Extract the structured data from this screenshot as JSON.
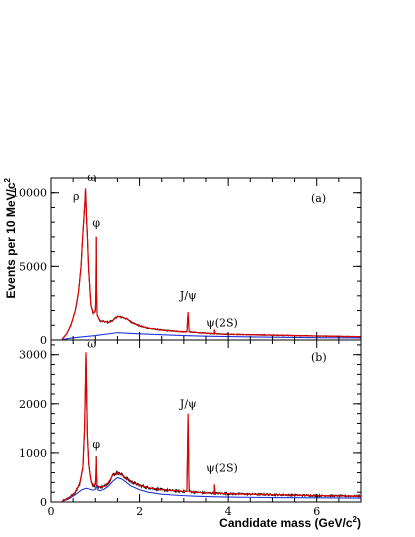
{
  "chart_data": {
    "type": "line",
    "xlabel_main": "Candidate mass (GeV/c",
    "xlabel_sup": "2",
    "xlabel_end": ")",
    "ylabel_main": "Events per 10 MeV/c",
    "ylabel_sup": "2",
    "xlim": [
      0,
      7
    ],
    "x_ticks": [
      0,
      2,
      4,
      6
    ],
    "colors": {
      "data": "#000000",
      "red": "#e00000",
      "blue": "#2233dd"
    },
    "panels": [
      {
        "panel_label": "(a)",
        "ylim": [
          0,
          11000
        ],
        "y_ticks": [
          0,
          5000,
          10000
        ],
        "annotations": [
          {
            "text": "ρ",
            "x": 0.57,
            "y": 9500
          },
          {
            "text": "ω",
            "x": 0.92,
            "y": 10800
          },
          {
            "text": "φ",
            "x": 1.02,
            "y": 7700
          },
          {
            "text": "J/ψ",
            "x": 3.1,
            "y": 2800
          },
          {
            "text": "ψ(2S)",
            "x": 3.86,
            "y": 900
          }
        ],
        "series": [
          {
            "color": "#e00000",
            "x": [
              0.25,
              0.35,
              0.45,
              0.55,
              0.62,
              0.68,
              0.72,
              0.75,
              0.77,
              0.78,
              0.79,
              0.8,
              0.82,
              0.85,
              0.9,
              0.95,
              1.0,
              1.015,
              1.02,
              1.025,
              1.04,
              1.1,
              1.2,
              1.3,
              1.4,
              1.5,
              1.6,
              1.7,
              1.8,
              2.0,
              2.2,
              2.5,
              2.8,
              3.0,
              3.07,
              3.097,
              3.12,
              3.2,
              3.5,
              3.68,
              3.686,
              3.7,
              4.0,
              5.0,
              6.0,
              7.0
            ],
            "y": [
              50,
              400,
              1000,
              2000,
              3200,
              5000,
              7200,
              8600,
              9500,
              10300,
              9600,
              8500,
              7200,
              4800,
              2400,
              1800,
              2000,
              3500,
              7000,
              3400,
              1700,
              1300,
              1250,
              1200,
              1350,
              1600,
              1550,
              1450,
              1250,
              950,
              800,
              680,
              600,
              560,
              560,
              1900,
              560,
              530,
              460,
              430,
              720,
              430,
              390,
              330,
              270,
              220
            ]
          },
          {
            "color": "#2233dd",
            "x": [
              0.25,
              0.5,
              1.0,
              1.5,
              2.0,
              2.5,
              3.0,
              3.5,
              4.0,
              5.0,
              6.0,
              7.0
            ],
            "y": [
              30,
              150,
              300,
              500,
              420,
              360,
              300,
              260,
              230,
              190,
              160,
              140
            ]
          }
        ]
      },
      {
        "panel_label": "(b)",
        "ylim": [
          0,
          3300
        ],
        "y_ticks": [
          0,
          1000,
          2000,
          3000
        ],
        "annotations": [
          {
            "text": "ω",
            "x": 0.92,
            "y": 3150
          },
          {
            "text": "φ",
            "x": 1.02,
            "y": 1100
          },
          {
            "text": "J/ψ",
            "x": 3.1,
            "y": 1920
          },
          {
            "text": "ψ(2S)",
            "x": 3.86,
            "y": 620
          }
        ],
        "series": [
          {
            "color": "#e00000",
            "x": [
              0.25,
              0.4,
              0.55,
              0.65,
              0.72,
              0.76,
              0.78,
              0.79,
              0.8,
              0.82,
              0.85,
              0.9,
              0.95,
              1.0,
              1.015,
              1.02,
              1.025,
              1.04,
              1.1,
              1.2,
              1.3,
              1.4,
              1.5,
              1.6,
              1.7,
              1.8,
              2.0,
              2.2,
              2.5,
              2.8,
              3.0,
              3.07,
              3.097,
              3.12,
              3.2,
              3.5,
              3.68,
              3.686,
              3.7,
              4.0,
              5.0,
              6.0,
              7.0
            ],
            "y": [
              20,
              80,
              200,
              380,
              700,
              1500,
              2500,
              3050,
              2500,
              1400,
              800,
              450,
              330,
              360,
              600,
              920,
              580,
              330,
              300,
              320,
              400,
              560,
              600,
              560,
              480,
              420,
              340,
              290,
              250,
              230,
              215,
              215,
              1800,
              215,
              205,
              185,
              180,
              360,
              180,
              170,
              150,
              130,
              120
            ]
          },
          {
            "color": "#2233dd",
            "x": [
              0.25,
              0.4,
              0.55,
              0.7,
              0.8,
              0.95,
              1.0,
              1.02,
              1.05,
              1.1,
              1.2,
              1.3,
              1.4,
              1.5,
              1.6,
              1.7,
              1.8,
              2.0,
              2.2,
              2.5,
              2.8,
              3.0,
              3.2,
              3.5,
              4.0,
              5.0,
              6.0,
              7.0
            ],
            "y": [
              15,
              60,
              150,
              250,
              280,
              240,
              260,
              330,
              250,
              230,
              260,
              330,
              430,
              500,
              470,
              400,
              330,
              250,
              200,
              160,
              140,
              130,
              120,
              110,
              100,
              90,
              85,
              80
            ]
          }
        ]
      }
    ]
  }
}
